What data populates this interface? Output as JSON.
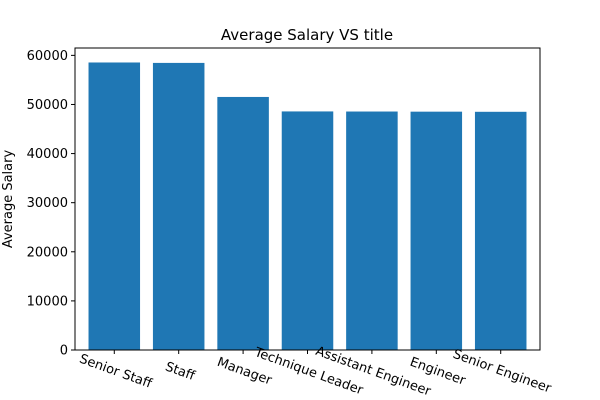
{
  "chart_data": {
    "type": "bar",
    "title": "Average Salary VS title",
    "xlabel": "",
    "ylabel": "Average Salary",
    "categories": [
      "Senior Staff",
      "Staff",
      "Manager",
      "Technique Leader",
      "Assistant Engineer",
      "Engineer",
      "Senior Engineer"
    ],
    "values": [
      58550,
      58465,
      51531,
      48583,
      48564,
      48535,
      48507
    ],
    "ylim": [
      0,
      61500
    ],
    "yticks": [
      0,
      10000,
      20000,
      30000,
      40000,
      50000,
      60000
    ],
    "grid": false,
    "bar_color": "#1f77b4"
  }
}
